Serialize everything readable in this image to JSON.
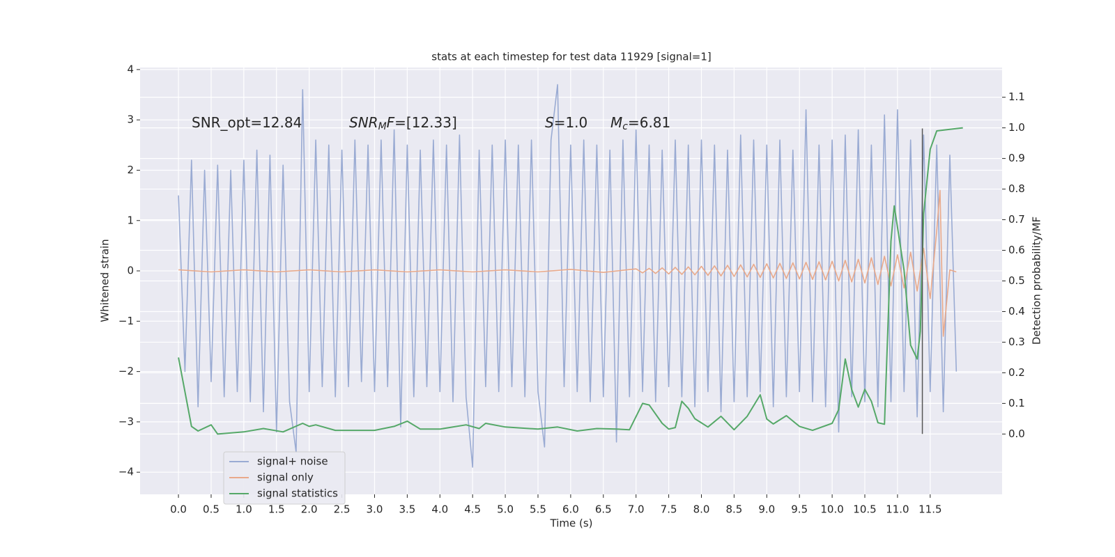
{
  "chart_data": {
    "type": "line",
    "title": "stats at each timestep for test data 11929 [signal=1]",
    "xlabel": "Time (s)",
    "ylabel": "Whitened strain",
    "y2label": "Detection probability/MF",
    "xlim": [
      -0.587,
      12.6
    ],
    "ylim": [
      -4.44,
      4.04
    ],
    "y2lim": [
      -0.197,
      1.197
    ],
    "xticks": [
      {
        "value": 0,
        "label": "0.0"
      },
      {
        "value": 0.5,
        "label": "0.5"
      },
      {
        "value": 1,
        "label": "1.0"
      },
      {
        "value": 1.5,
        "label": "1.5"
      },
      {
        "value": 2,
        "label": "2.0"
      },
      {
        "value": 2.5,
        "label": "2.5"
      },
      {
        "value": 3,
        "label": "3.0"
      },
      {
        "value": 3.5,
        "label": "3.5"
      },
      {
        "value": 4,
        "label": "4.0"
      },
      {
        "value": 4.5,
        "label": "4.5"
      },
      {
        "value": 5,
        "label": "5.0"
      },
      {
        "value": 5.5,
        "label": "5.5"
      },
      {
        "value": 6,
        "label": "6.0"
      },
      {
        "value": 6.5,
        "label": "6.5"
      },
      {
        "value": 7,
        "label": "7.0"
      },
      {
        "value": 7.5,
        "label": "7.5"
      },
      {
        "value": 8,
        "label": "8.0"
      },
      {
        "value": 8.5,
        "label": "8.5"
      },
      {
        "value": 9,
        "label": "9.0"
      },
      {
        "value": 9.5,
        "label": "9.5"
      },
      {
        "value": 10,
        "label": "10.0"
      },
      {
        "value": 10.5,
        "label": "10.5"
      },
      {
        "value": 11,
        "label": "11.0"
      },
      {
        "value": 11.5,
        "label": "11.5"
      }
    ],
    "yticks": [
      {
        "value": -4,
        "label": "−4"
      },
      {
        "value": -3,
        "label": "−3"
      },
      {
        "value": -2,
        "label": "−2"
      },
      {
        "value": -1,
        "label": "−1"
      },
      0,
      1,
      2,
      3,
      4
    ],
    "y2ticks": [
      {
        "value": 0,
        "label": "0.0"
      },
      {
        "value": 0.1,
        "label": "0.1"
      },
      {
        "value": 0.2,
        "label": "0.2"
      },
      {
        "value": 0.3,
        "label": "0.3"
      },
      {
        "value": 0.4,
        "label": "0.4"
      },
      {
        "value": 0.5,
        "label": "0.5"
      },
      {
        "value": 0.6,
        "label": "0.6"
      },
      {
        "value": 0.7,
        "label": "0.7"
      },
      {
        "value": 0.8,
        "label": "0.8"
      },
      {
        "value": 0.9,
        "label": "0.9"
      },
      {
        "value": 1.0,
        "label": "1.0"
      },
      {
        "value": 1.1,
        "label": "1.1"
      }
    ],
    "grid": true,
    "legend": "lower left",
    "annotations": [
      [
        "SNR_opt=12.84"
      ],
      [
        "SNR",
        "M",
        "F",
        "=[12.33]"
      ],
      [
        "S",
        "=1.0"
      ],
      [
        "M",
        "c",
        "=6.81"
      ]
    ],
    "vline": {
      "x": 11.38,
      "y": [
        -3.24,
        2.83
      ],
      "color": "#555555"
    },
    "series": [
      {
        "name": "signal+ noise",
        "color": "#9aabd3",
        "x": [
          0.0,
          0.1,
          0.2,
          0.3,
          0.4,
          0.5,
          0.6,
          0.7,
          0.8,
          0.9,
          1.0,
          1.1,
          1.2,
          1.3,
          1.4,
          1.5,
          1.6,
          1.7,
          1.8,
          1.9,
          2.0,
          2.1,
          2.2,
          2.3,
          2.4,
          2.5,
          2.6,
          2.7,
          2.8,
          2.9,
          3.0,
          3.1,
          3.2,
          3.3,
          3.4,
          3.5,
          3.6,
          3.7,
          3.8,
          3.9,
          4.0,
          4.1,
          4.2,
          4.3,
          4.4,
          4.5,
          4.6,
          4.7,
          4.8,
          4.9,
          5.0,
          5.1,
          5.2,
          5.3,
          5.4,
          5.5,
          5.6,
          5.7,
          5.8,
          5.9,
          6.0,
          6.1,
          6.2,
          6.3,
          6.4,
          6.5,
          6.6,
          6.7,
          6.8,
          6.9,
          7.0,
          7.1,
          7.2,
          7.3,
          7.4,
          7.5,
          7.6,
          7.7,
          7.8,
          7.9,
          8.0,
          8.1,
          8.2,
          8.3,
          8.4,
          8.5,
          8.6,
          8.7,
          8.8,
          8.9,
          9.0,
          9.1,
          9.2,
          9.3,
          9.4,
          9.5,
          9.6,
          9.7,
          9.8,
          9.9,
          10.0,
          10.1,
          10.2,
          10.3,
          10.4,
          10.5,
          10.6,
          10.7,
          10.8,
          10.9,
          11.0,
          11.1,
          11.2,
          11.3,
          11.4,
          11.5,
          11.6,
          11.7,
          11.8,
          11.9
        ],
        "values": [
          1.5,
          -2.0,
          2.2,
          -2.7,
          2.0,
          -2.2,
          2.1,
          -2.5,
          2.0,
          -2.4,
          2.2,
          -2.6,
          2.4,
          -2.8,
          2.3,
          -3.2,
          2.1,
          -2.6,
          -3.6,
          3.6,
          -2.4,
          2.6,
          -2.3,
          2.5,
          -2.5,
          2.4,
          -2.3,
          2.6,
          -2.2,
          2.5,
          -2.4,
          2.6,
          -2.3,
          2.8,
          -3.1,
          2.5,
          -2.5,
          2.4,
          -2.3,
          2.6,
          -2.4,
          2.5,
          -2.6,
          2.7,
          -2.5,
          -3.9,
          2.4,
          -2.3,
          2.5,
          -2.4,
          2.6,
          -2.3,
          2.5,
          -2.5,
          2.6,
          -2.4,
          -3.5,
          2.6,
          3.7,
          -2.3,
          2.5,
          -2.4,
          2.6,
          -2.6,
          2.5,
          -2.5,
          2.4,
          -3.4,
          2.6,
          -2.5,
          2.8,
          -2.4,
          2.5,
          -2.6,
          2.4,
          -2.3,
          2.6,
          -2.5,
          2.5,
          -2.7,
          2.6,
          -2.4,
          2.5,
          -2.8,
          2.4,
          -2.6,
          2.7,
          -2.5,
          2.6,
          -2.4,
          2.5,
          -2.7,
          2.6,
          -2.5,
          2.4,
          -2.4,
          3.2,
          -2.6,
          2.5,
          -2.7,
          2.6,
          -3.2,
          2.7,
          -2.5,
          2.8,
          -2.6,
          2.5,
          -2.7,
          3.1,
          -2.6,
          3.2,
          -2.4,
          2.6,
          -2.9,
          2.7,
          -2.4,
          2.5,
          -2.8,
          2.3,
          -2.0
        ]
      },
      {
        "name": "signal only",
        "color": "#e9a98a",
        "x": [
          0,
          0.5,
          1,
          1.5,
          2,
          2.5,
          3,
          3.5,
          4,
          4.5,
          5,
          5.5,
          6,
          6.5,
          7.0,
          7.1,
          7.2,
          7.3,
          7.4,
          7.5,
          7.6,
          7.7,
          7.8,
          7.9,
          8.0,
          8.1,
          8.2,
          8.3,
          8.4,
          8.5,
          8.6,
          8.7,
          8.8,
          8.9,
          9.0,
          9.1,
          9.2,
          9.3,
          9.4,
          9.5,
          9.6,
          9.7,
          9.8,
          9.9,
          10.0,
          10.1,
          10.2,
          10.3,
          10.4,
          10.5,
          10.6,
          10.7,
          10.8,
          10.9,
          11.0,
          11.1,
          11.2,
          11.3,
          11.4,
          11.5,
          11.6,
          11.65,
          11.7,
          11.8,
          11.9
        ],
        "values": [
          0.02,
          -0.02,
          0.02,
          -0.02,
          0.02,
          -0.02,
          0.02,
          -0.02,
          0.02,
          -0.02,
          0.02,
          -0.02,
          0.03,
          -0.03,
          0.04,
          -0.04,
          0.05,
          -0.05,
          0.06,
          -0.06,
          0.07,
          -0.07,
          0.08,
          -0.08,
          0.09,
          -0.09,
          0.1,
          -0.1,
          0.11,
          -0.11,
          0.12,
          -0.12,
          0.13,
          -0.13,
          0.14,
          -0.14,
          0.15,
          -0.15,
          0.16,
          -0.16,
          0.17,
          -0.17,
          0.18,
          -0.18,
          0.19,
          -0.2,
          0.21,
          -0.22,
          0.23,
          -0.24,
          0.26,
          -0.27,
          0.29,
          -0.3,
          0.32,
          -0.34,
          0.37,
          -0.4,
          0.45,
          -0.55,
          0.8,
          1.6,
          -1.3,
          0.02,
          -0.02
        ]
      },
      {
        "name": "signal statistics",
        "color": "#55a868",
        "axis": "y2",
        "x": [
          0.0,
          0.2,
          0.3,
          0.5,
          0.6,
          1.0,
          1.3,
          1.6,
          1.9,
          2.0,
          2.1,
          2.4,
          3.0,
          3.3,
          3.5,
          3.7,
          4.0,
          4.4,
          4.6,
          4.7,
          5.0,
          5.5,
          5.8,
          6.1,
          6.4,
          6.7,
          6.9,
          7.1,
          7.2,
          7.4,
          7.5,
          7.6,
          7.7,
          7.8,
          7.9,
          8.1,
          8.3,
          8.5,
          8.7,
          8.9,
          9.0,
          9.1,
          9.3,
          9.5,
          9.7,
          10.0,
          10.1,
          10.2,
          10.3,
          10.4,
          10.5,
          10.6,
          10.7,
          10.8,
          10.9,
          10.95,
          11.1,
          11.2,
          11.3,
          11.35,
          11.4,
          11.5,
          11.6,
          11.8,
          12.0
        ],
        "values": [
          0.25,
          0.025,
          0.01,
          0.03,
          0.0,
          0.007,
          0.018,
          0.007,
          0.035,
          0.025,
          0.03,
          0.012,
          0.012,
          0.025,
          0.042,
          0.016,
          0.016,
          0.03,
          0.018,
          0.035,
          0.023,
          0.016,
          0.023,
          0.01,
          0.018,
          0.016,
          0.014,
          0.1,
          0.095,
          0.035,
          0.016,
          0.021,
          0.107,
          0.084,
          0.05,
          0.023,
          0.058,
          0.014,
          0.058,
          0.128,
          0.049,
          0.033,
          0.06,
          0.025,
          0.012,
          0.035,
          0.08,
          0.245,
          0.145,
          0.088,
          0.146,
          0.107,
          0.037,
          0.032,
          0.63,
          0.745,
          0.535,
          0.29,
          0.245,
          0.336,
          0.72,
          0.93,
          0.99,
          0.995,
          1.0
        ]
      }
    ]
  }
}
